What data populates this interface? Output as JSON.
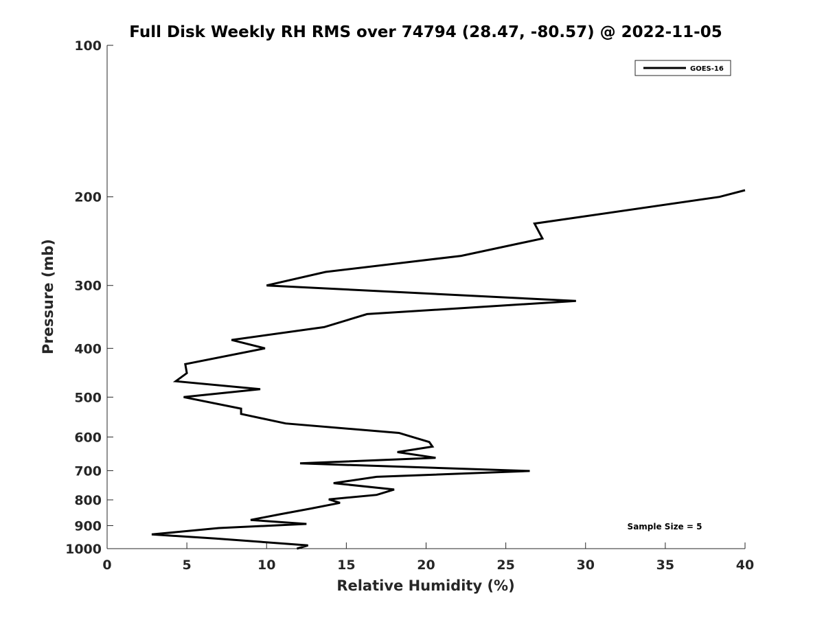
{
  "chart_data": {
    "type": "line",
    "title": "Full Disk Weekly RH RMS over 74794 (28.47, -80.57) @ 2022-11-05",
    "xlabel": "Relative Humidity (%)",
    "ylabel": "Pressure (mb)",
    "xlim": [
      0,
      40
    ],
    "ylim": [
      100,
      1000
    ],
    "y_scale": "log",
    "y_reversed": true,
    "xticks": [
      0,
      5,
      10,
      15,
      20,
      25,
      30,
      35,
      40
    ],
    "yticks": [
      100,
      200,
      300,
      400,
      500,
      600,
      700,
      800,
      900,
      1000
    ],
    "grid": false,
    "legend_position": "top-right",
    "annotation": "Sample Size = 5",
    "series": [
      {
        "name": "GOES-16",
        "color": "#000000",
        "points": [
          [
            11.9,
            1000
          ],
          [
            12.6,
            985
          ],
          [
            6.8,
            955
          ],
          [
            2.8,
            937
          ],
          [
            7.0,
            910
          ],
          [
            12.5,
            893
          ],
          [
            9.0,
            877
          ],
          [
            10.8,
            855
          ],
          [
            12.8,
            832
          ],
          [
            14.6,
            811
          ],
          [
            13.9,
            798
          ],
          [
            16.9,
            782
          ],
          [
            18.0,
            763
          ],
          [
            14.2,
            741
          ],
          [
            16.9,
            720
          ],
          [
            26.5,
            701
          ],
          [
            12.1,
            677
          ],
          [
            20.6,
            660
          ],
          [
            18.2,
            643
          ],
          [
            20.4,
            627
          ],
          [
            20.2,
            614
          ],
          [
            18.3,
            589
          ],
          [
            11.2,
            564
          ],
          [
            8.4,
            540
          ],
          [
            8.4,
            527
          ],
          [
            4.8,
            500
          ],
          [
            9.6,
            482
          ],
          [
            4.3,
            465
          ],
          [
            5.0,
            448
          ],
          [
            4.9,
            430
          ],
          [
            9.9,
            400
          ],
          [
            7.8,
            385
          ],
          [
            13.6,
            363
          ],
          [
            16.3,
            342
          ],
          [
            29.4,
            322
          ],
          [
            10.0,
            300
          ],
          [
            13.7,
            282
          ],
          [
            22.2,
            262
          ],
          [
            27.3,
            242
          ],
          [
            26.8,
            226
          ],
          [
            38.4,
            200
          ],
          [
            40.0,
            194
          ]
        ]
      }
    ]
  }
}
